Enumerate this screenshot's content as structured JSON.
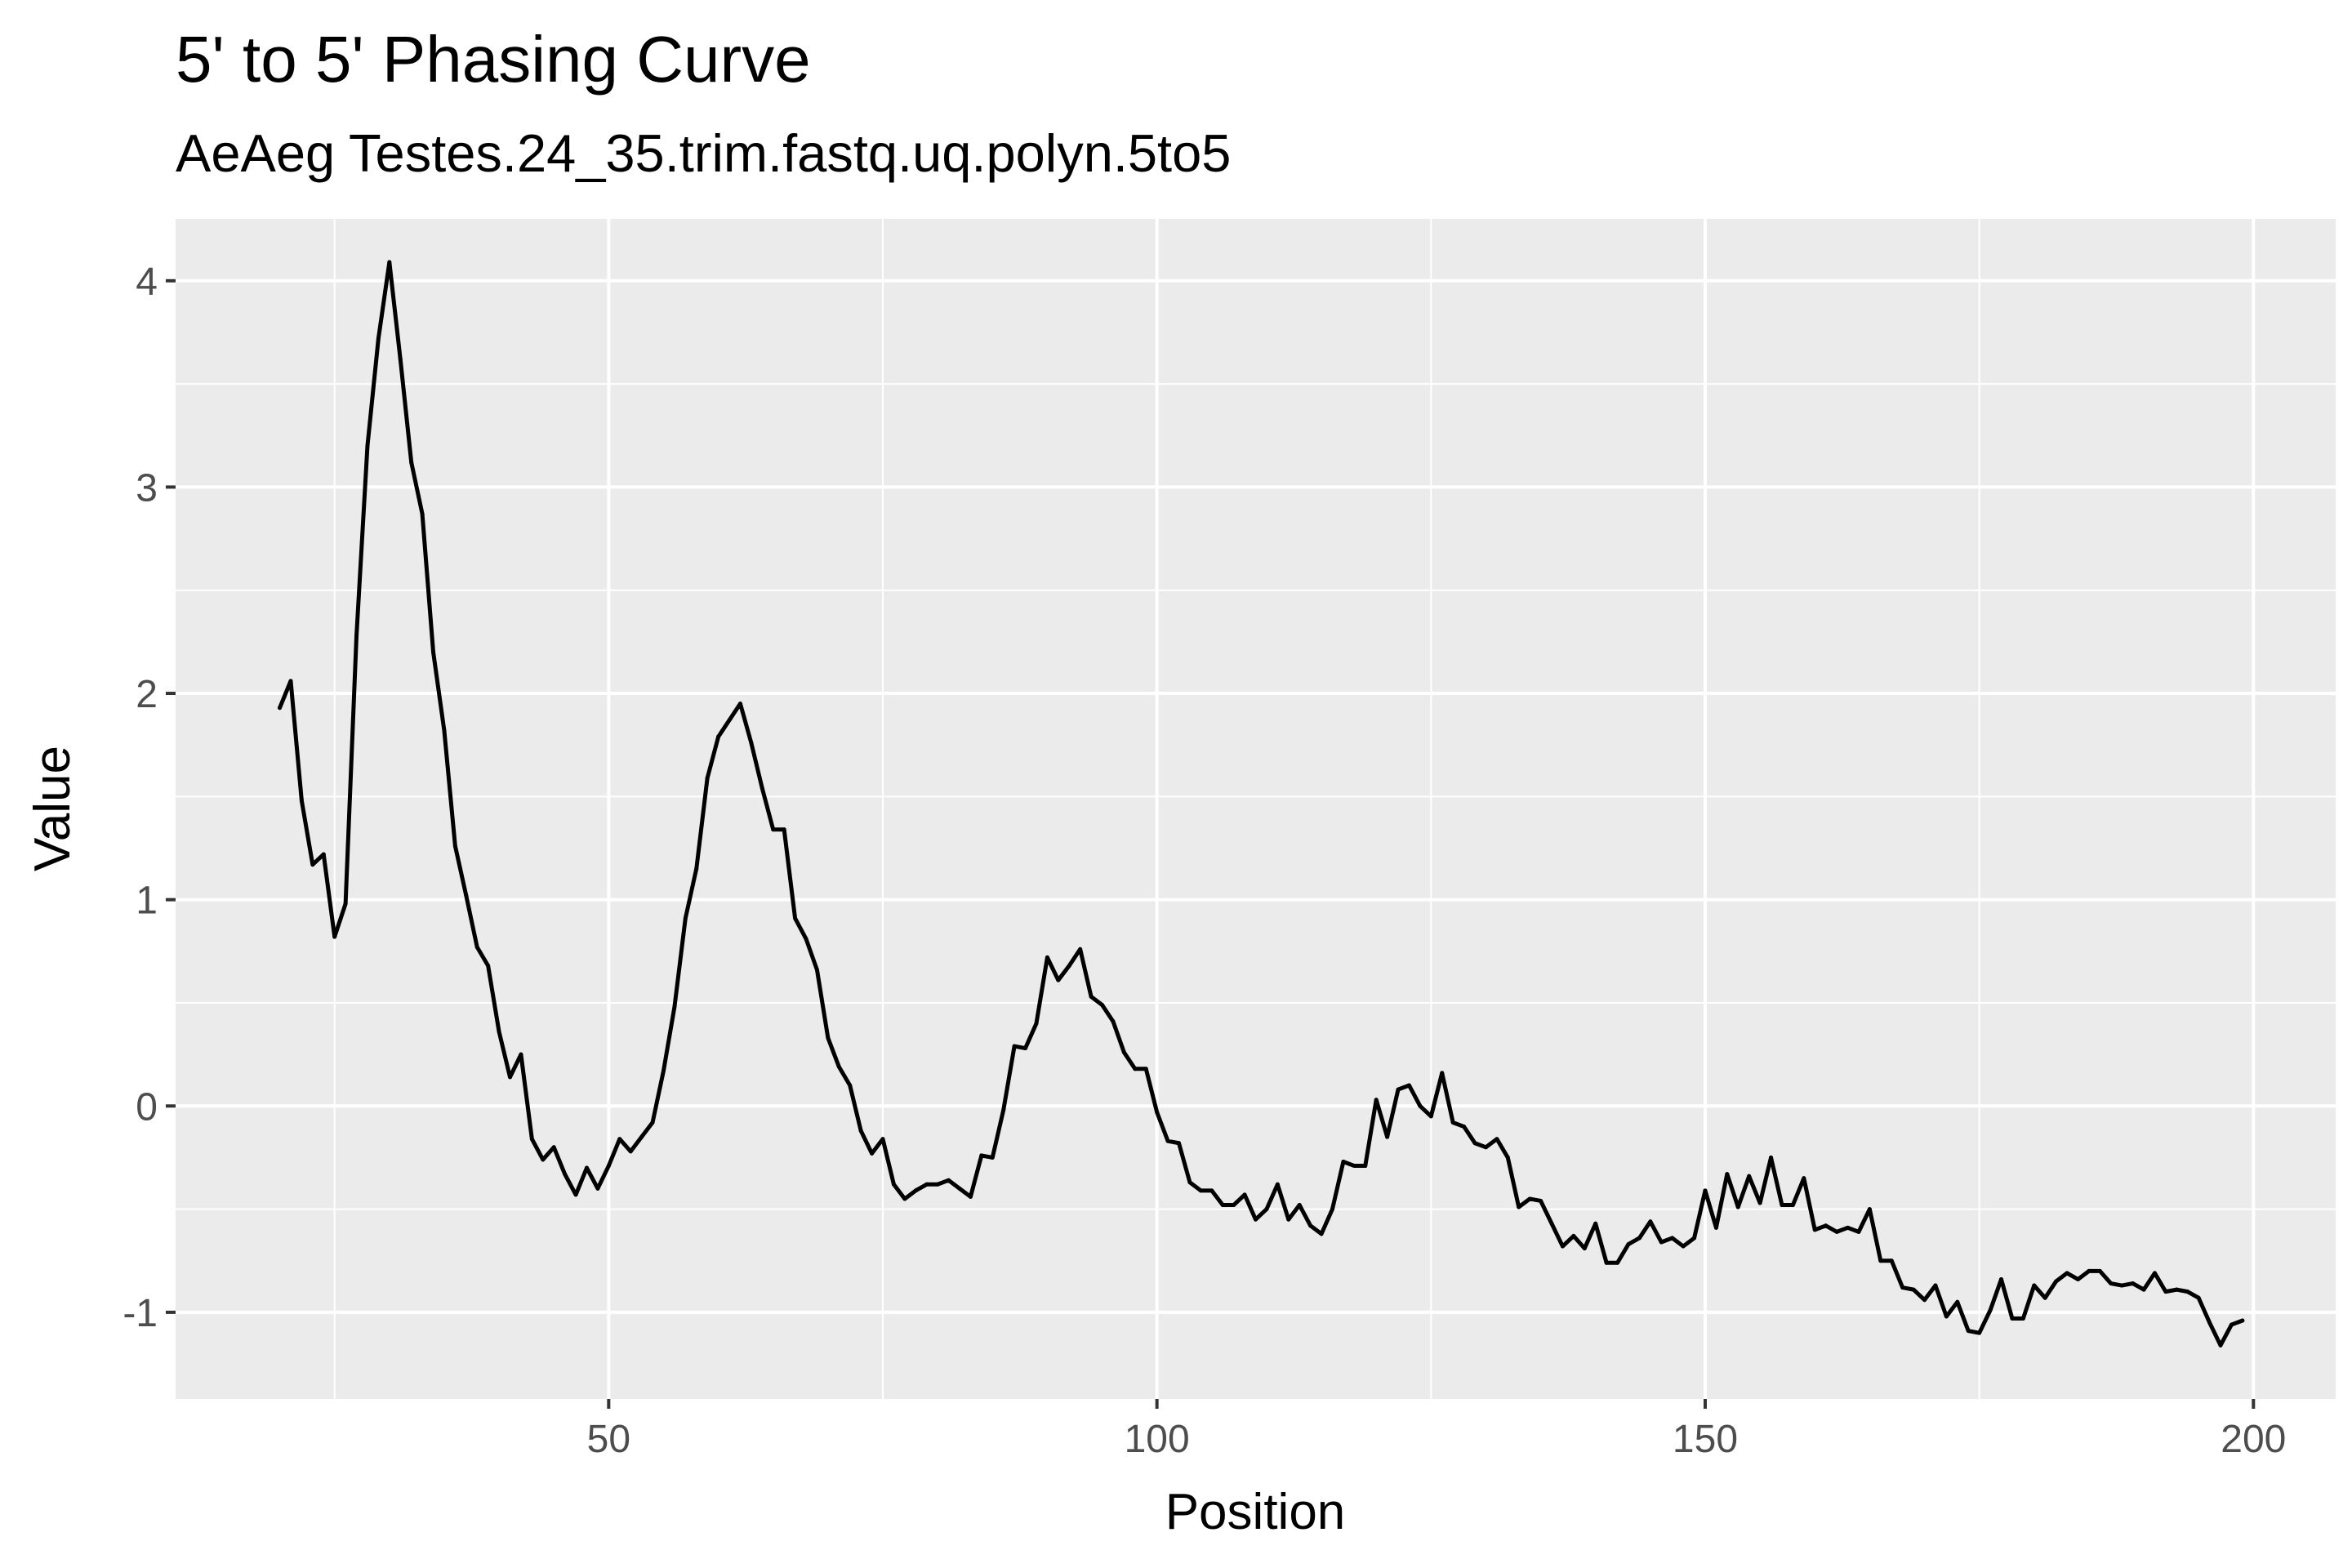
{
  "chart_data": {
    "type": "line",
    "title": "5' to 5' Phasing Curve",
    "subtitle": "AeAeg Testes.24_35.trim.fastq.uq.polyn.5to5",
    "xlabel": "Position",
    "ylabel": "Value",
    "xlim": [
      10.5,
      207.5
    ],
    "ylim": [
      -1.42,
      4.3
    ],
    "x_ticks": [
      50,
      100,
      150,
      200
    ],
    "x_tick_labels": [
      "50",
      "100",
      "150",
      "200"
    ],
    "y_ticks": [
      -1,
      0,
      1,
      2,
      3,
      4
    ],
    "y_tick_labels": [
      "-1",
      "0",
      "1",
      "2",
      "3",
      "4"
    ],
    "grid": true,
    "legend": "none",
    "colors": {
      "line": "#000000",
      "panel_background": "#ebebeb",
      "grid": "#ffffff",
      "tick_label": "#4d4d4d"
    },
    "series": [
      {
        "x_start": 20,
        "x_step": 1,
        "values": [
          1.93,
          2.06,
          1.48,
          1.17,
          1.22,
          0.82,
          0.98,
          2.28,
          3.2,
          3.72,
          4.09,
          3.62,
          3.12,
          2.87,
          2.2,
          1.82,
          1.26,
          1.02,
          0.77,
          0.68,
          0.36,
          0.14,
          0.25,
          -0.16,
          -0.26,
          -0.2,
          -0.33,
          -0.43,
          -0.3,
          -0.4,
          -0.29,
          -0.16,
          -0.22,
          -0.15,
          -0.08,
          0.17,
          0.48,
          0.91,
          1.15,
          1.59,
          1.79,
          1.87,
          1.95,
          1.76,
          1.54,
          1.34,
          1.34,
          0.91,
          0.81,
          0.66,
          0.33,
          0.19,
          0.1,
          -0.12,
          -0.23,
          -0.16,
          -0.38,
          -0.45,
          -0.41,
          -0.38,
          -0.38,
          -0.36,
          -0.4,
          -0.44,
          -0.24,
          -0.25,
          -0.02,
          0.29,
          0.28,
          0.4,
          0.72,
          0.61,
          0.68,
          0.76,
          0.53,
          0.49,
          0.41,
          0.26,
          0.18,
          0.18,
          -0.03,
          -0.17,
          -0.18,
          -0.37,
          -0.41,
          -0.41,
          -0.48,
          -0.48,
          -0.43,
          -0.55,
          -0.5,
          -0.38,
          -0.55,
          -0.48,
          -0.58,
          -0.62,
          -0.5,
          -0.27,
          -0.29,
          -0.29,
          0.03,
          -0.15,
          0.08,
          0.1,
          0.0,
          -0.05,
          0.16,
          -0.08,
          -0.1,
          -0.18,
          -0.2,
          -0.16,
          -0.25,
          -0.49,
          -0.45,
          -0.46,
          -0.57,
          -0.68,
          -0.63,
          -0.69,
          -0.57,
          -0.76,
          -0.76,
          -0.67,
          -0.64,
          -0.56,
          -0.66,
          -0.64,
          -0.68,
          -0.64,
          -0.41,
          -0.59,
          -0.33,
          -0.49,
          -0.34,
          -0.47,
          -0.25,
          -0.48,
          -0.48,
          -0.35,
          -0.6,
          -0.58,
          -0.61,
          -0.59,
          -0.61,
          -0.5,
          -0.75,
          -0.75,
          -0.88,
          -0.89,
          -0.94,
          -0.87,
          -1.02,
          -0.95,
          -1.09,
          -1.1,
          -0.99,
          -0.84,
          -1.03,
          -1.03,
          -0.87,
          -0.93,
          -0.85,
          -0.81,
          -0.84,
          -0.8,
          -0.8,
          -0.86,
          -0.87,
          -0.86,
          -0.89,
          -0.81,
          -0.9,
          -0.89,
          -0.9,
          -0.93,
          -1.05,
          -1.16,
          -1.06,
          -1.04
        ]
      }
    ]
  }
}
